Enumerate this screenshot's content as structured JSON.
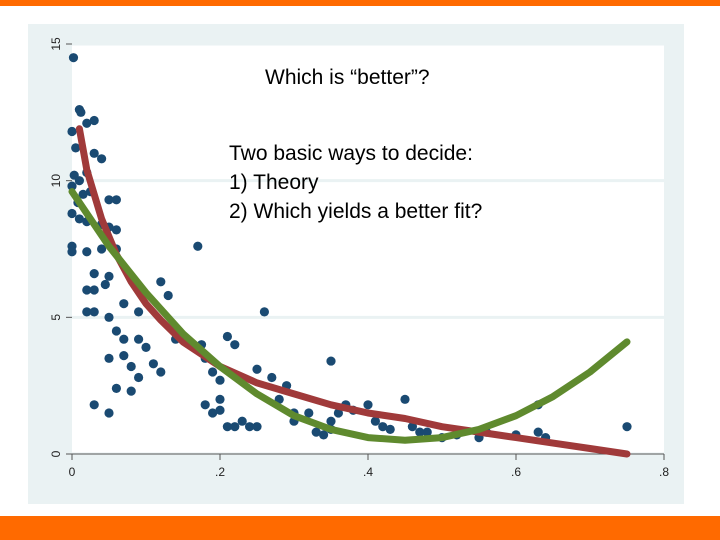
{
  "slide": {
    "question": "Which is “better”?",
    "lines": [
      "Two basic ways to decide:",
      "1) Theory",
      "2) Which yields a better fit?"
    ],
    "accent_color": "#ff6a00"
  },
  "chart_data": {
    "type": "scatter",
    "title": "",
    "xlabel": "",
    "ylabel": "",
    "xlim": [
      0,
      0.8
    ],
    "ylim": [
      0,
      15
    ],
    "x_ticks": [
      {
        "value": 0,
        "label": "0"
      },
      {
        "value": 0.2,
        "label": ".2"
      },
      {
        "value": 0.4,
        "label": ".4"
      },
      {
        "value": 0.6,
        "label": ".6"
      },
      {
        "value": 0.8,
        "label": ".8"
      }
    ],
    "y_ticks": [
      {
        "value": 0,
        "label": "0"
      },
      {
        "value": 5,
        "label": "5"
      },
      {
        "value": 10,
        "label": "10"
      },
      {
        "value": 15,
        "label": "15"
      }
    ],
    "grid": true,
    "colors": {
      "panel_bg": "#eaf2f3",
      "plot_bg": "#ffffff",
      "points": "#1a4a72",
      "curve_red": "#a03a3a",
      "curve_green": "#5f8a2e",
      "grid": "#eaf2f3"
    },
    "points": [
      [
        0.002,
        14.5
      ],
      [
        0.01,
        12.6
      ],
      [
        0.012,
        12.5
      ],
      [
        0.02,
        12.1
      ],
      [
        0.03,
        12.2
      ],
      [
        0.0,
        11.8
      ],
      [
        0.005,
        11.2
      ],
      [
        0.03,
        11.0
      ],
      [
        0.04,
        10.8
      ],
      [
        0.003,
        10.2
      ],
      [
        0.01,
        10.0
      ],
      [
        0.02,
        10.3
      ],
      [
        0.0,
        9.8
      ],
      [
        0.015,
        9.5
      ],
      [
        0.025,
        9.6
      ],
      [
        0.008,
        9.2
      ],
      [
        0.05,
        9.3
      ],
      [
        0.06,
        9.3
      ],
      [
        0.0,
        8.8
      ],
      [
        0.01,
        8.6
      ],
      [
        0.02,
        8.5
      ],
      [
        0.04,
        8.4
      ],
      [
        0.05,
        8.3
      ],
      [
        0.06,
        8.2
      ],
      [
        0.0,
        7.6
      ],
      [
        0.02,
        7.4
      ],
      [
        0.04,
        7.5
      ],
      [
        0.06,
        7.5
      ],
      [
        0.0,
        7.4
      ],
      [
        0.03,
        6.6
      ],
      [
        0.05,
        6.5
      ],
      [
        0.02,
        6.0
      ],
      [
        0.03,
        6.0
      ],
      [
        0.045,
        6.2
      ],
      [
        0.02,
        5.2
      ],
      [
        0.03,
        5.2
      ],
      [
        0.05,
        5.0
      ],
      [
        0.07,
        5.5
      ],
      [
        0.09,
        5.2
      ],
      [
        0.06,
        4.5
      ],
      [
        0.07,
        4.2
      ],
      [
        0.09,
        4.2
      ],
      [
        0.05,
        3.5
      ],
      [
        0.07,
        3.6
      ],
      [
        0.1,
        3.9
      ],
      [
        0.11,
        3.3
      ],
      [
        0.12,
        3.0
      ],
      [
        0.08,
        3.2
      ],
      [
        0.09,
        2.8
      ],
      [
        0.06,
        2.4
      ],
      [
        0.08,
        2.3
      ],
      [
        0.03,
        1.8
      ],
      [
        0.05,
        1.5
      ],
      [
        0.12,
        6.3
      ],
      [
        0.13,
        5.8
      ],
      [
        0.14,
        4.2
      ],
      [
        0.17,
        7.6
      ],
      [
        0.175,
        4.0
      ],
      [
        0.18,
        3.5
      ],
      [
        0.19,
        3.0
      ],
      [
        0.2,
        2.7
      ],
      [
        0.21,
        4.3
      ],
      [
        0.22,
        4.0
      ],
      [
        0.2,
        2.0
      ],
      [
        0.18,
        1.8
      ],
      [
        0.19,
        1.5
      ],
      [
        0.2,
        1.6
      ],
      [
        0.21,
        1.0
      ],
      [
        0.22,
        1.0
      ],
      [
        0.23,
        1.2
      ],
      [
        0.24,
        1.0
      ],
      [
        0.25,
        1.0
      ],
      [
        0.26,
        5.2
      ],
      [
        0.25,
        3.1
      ],
      [
        0.27,
        2.8
      ],
      [
        0.28,
        2.0
      ],
      [
        0.29,
        2.5
      ],
      [
        0.3,
        1.2
      ],
      [
        0.3,
        1.5
      ],
      [
        0.32,
        1.5
      ],
      [
        0.33,
        0.8
      ],
      [
        0.34,
        0.7
      ],
      [
        0.35,
        0.9
      ],
      [
        0.35,
        1.2
      ],
      [
        0.36,
        1.5
      ],
      [
        0.37,
        1.8
      ],
      [
        0.38,
        1.6
      ],
      [
        0.35,
        3.4
      ],
      [
        0.4,
        1.8
      ],
      [
        0.41,
        1.2
      ],
      [
        0.42,
        1.0
      ],
      [
        0.43,
        0.9
      ],
      [
        0.45,
        2.0
      ],
      [
        0.46,
        1.0
      ],
      [
        0.47,
        0.8
      ],
      [
        0.48,
        0.8
      ],
      [
        0.5,
        0.6
      ],
      [
        0.52,
        0.7
      ],
      [
        0.55,
        0.6
      ],
      [
        0.56,
        0.8
      ],
      [
        0.6,
        0.7
      ],
      [
        0.63,
        1.8
      ],
      [
        0.63,
        0.8
      ],
      [
        0.64,
        0.6
      ],
      [
        0.75,
        1.0
      ]
    ],
    "curves": [
      {
        "color": "#a03a3a",
        "type": "red-decay",
        "x": [
          0.01,
          0.02,
          0.04,
          0.06,
          0.08,
          0.1,
          0.12,
          0.15,
          0.2,
          0.25,
          0.3,
          0.35,
          0.4,
          0.45,
          0.5,
          0.55,
          0.6,
          0.65,
          0.7,
          0.75
        ],
        "y": [
          11.9,
          10.4,
          8.6,
          7.3,
          6.3,
          5.5,
          4.9,
          4.1,
          3.2,
          2.6,
          2.2,
          1.8,
          1.5,
          1.3,
          1.0,
          0.8,
          0.6,
          0.4,
          0.2,
          0.0
        ]
      },
      {
        "color": "#5f8a2e",
        "type": "green-quadratic",
        "x": [
          0.0,
          0.05,
          0.1,
          0.15,
          0.2,
          0.25,
          0.3,
          0.35,
          0.4,
          0.45,
          0.5,
          0.55,
          0.6,
          0.65,
          0.7,
          0.75
        ],
        "y": [
          9.6,
          7.6,
          5.9,
          4.4,
          3.2,
          2.2,
          1.4,
          0.9,
          0.6,
          0.5,
          0.6,
          0.9,
          1.4,
          2.1,
          3.0,
          4.1
        ]
      }
    ]
  }
}
